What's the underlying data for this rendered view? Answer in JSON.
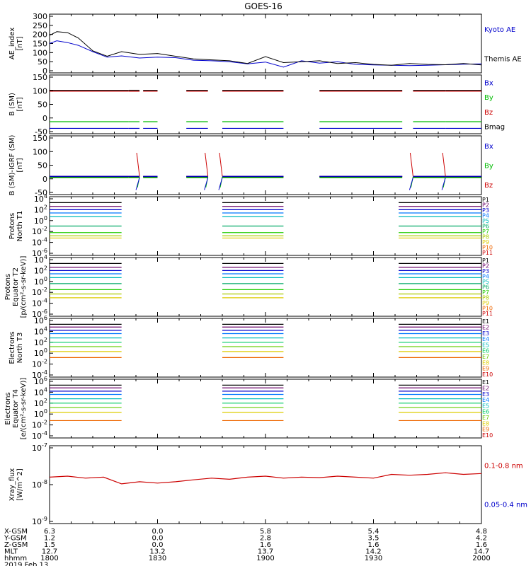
{
  "title": "GOES-16",
  "panels": [
    {
      "id": "ae",
      "ylabel": [
        "AE_index",
        "[nT]"
      ],
      "ticks": [
        "300",
        "250",
        "200",
        "150",
        "100",
        "50",
        "0"
      ],
      "legend": [
        {
          "text": "Kyoto AE",
          "color": "#0000cc"
        },
        {
          "text": "Themis AE",
          "color": "#000000"
        }
      ]
    },
    {
      "id": "bsm",
      "ylabel": [
        "B (SM)",
        "[nT]"
      ],
      "ticks": [
        "150",
        "100",
        "50",
        "0",
        "-50"
      ],
      "legend": [
        {
          "text": "Bx",
          "color": "#0000cc"
        },
        {
          "text": "By",
          "color": "#00bb00"
        },
        {
          "text": "Bz",
          "color": "#cc0000"
        },
        {
          "text": "Bmag",
          "color": "#000000"
        }
      ]
    },
    {
      "id": "bigrf",
      "ylabel": [
        "B (SM)-IGRF (SM)",
        "[nT]"
      ],
      "ticks": [
        "150",
        "100",
        "50",
        "0",
        "-50"
      ],
      "legend": [
        {
          "text": "Bx",
          "color": "#0000cc"
        },
        {
          "text": "By",
          "color": "#00bb00"
        },
        {
          "text": "Bz",
          "color": "#cc0000"
        }
      ]
    },
    {
      "id": "pn",
      "ylabel": [
        "Protons",
        "North T1"
      ],
      "ticks": [
        "10^4",
        "10^2",
        "10^0",
        "10^-2",
        "10^-4",
        "10^-6"
      ],
      "channels": [
        "P1",
        "P2",
        "P3",
        "P4",
        "P5",
        "P6",
        "P7",
        "P8",
        "P9",
        "P10",
        "P11"
      ]
    },
    {
      "id": "pe",
      "ylabel": [
        "Protons",
        "Equator T2",
        "[p/(cm²-s-sr-keV)]"
      ],
      "ticks": [
        "10^4",
        "10^2",
        "10^0",
        "10^-2",
        "10^-4",
        "10^-6"
      ],
      "channels": [
        "P1",
        "P2",
        "P3",
        "P4",
        "P5",
        "P6",
        "P7",
        "P8",
        "P9",
        "P10",
        "P11"
      ]
    },
    {
      "id": "en",
      "ylabel": [
        "Electrons",
        "North T3"
      ],
      "ticks": [
        "10^6",
        "10^4",
        "10^2",
        "10^0",
        "10^-2",
        "10^-4"
      ],
      "channels": [
        "E1",
        "E2",
        "E3",
        "E4",
        "E5",
        "E6",
        "E7",
        "E8",
        "E9",
        "E10"
      ]
    },
    {
      "id": "ee",
      "ylabel": [
        "Electrons",
        "Equator T4",
        "[e/(cm²-s-sr-keV)]"
      ],
      "ticks": [
        "10^6",
        "10^4",
        "10^2",
        "10^0",
        "10^-2",
        "10^-4"
      ],
      "channels": [
        "E1",
        "E2",
        "E3",
        "E4",
        "E5",
        "E6",
        "E7",
        "E8",
        "E9",
        "E10"
      ]
    },
    {
      "id": "xray",
      "ylabel": [
        "Xray_flux",
        "[W/m^2]"
      ],
      "ticks": [
        "10^-7",
        "10^-8",
        "10^-9"
      ],
      "legend": [
        {
          "text": "0.1-0.8 nm",
          "color": "#cc0000"
        },
        {
          "text": "0.05-0.4 nm",
          "color": "#0000cc"
        }
      ]
    }
  ],
  "ephemeris": {
    "rows": [
      {
        "label": "X-GSM",
        "values": [
          "6.3",
          "0.0",
          "5.8",
          "5.4",
          "4.8"
        ]
      },
      {
        "label": "Y-GSM",
        "values": [
          "1.2",
          "0.0",
          "2.8",
          "3.5",
          "4.2"
        ]
      },
      {
        "label": "Z-GSM",
        "values": [
          "1.5",
          "0.0",
          "1.6",
          "1.6",
          "1.6"
        ]
      },
      {
        "label": "MLT",
        "values": [
          "12.7",
          "13.2",
          "13.7",
          "14.2",
          "14.7"
        ]
      },
      {
        "label": "hhmm",
        "values": [
          "1800",
          "1830",
          "1900",
          "1930",
          "2000"
        ]
      }
    ],
    "date": "2019 Feb 13"
  },
  "channel_colors": {
    "P1": "#000000",
    "P2": "#6a006a",
    "P3": "#0000cc",
    "P4": "#0077ff",
    "P5": "#00bbbb",
    "P6": "#00aa66",
    "P7": "#22cc00",
    "P8": "#aacc00",
    "P9": "#ddcc00",
    "P10": "#ee6600",
    "P11": "#cc0000",
    "E1": "#000000",
    "E2": "#6a006a",
    "E3": "#0000cc",
    "E4": "#0077ff",
    "E5": "#00bbbb",
    "E6": "#00cc66",
    "E7": "#66cc00",
    "E8": "#ddcc00",
    "E9": "#ee6600",
    "E10": "#cc0000"
  },
  "chart_data": {
    "type": "line",
    "x_unit": "minutes after 1800 UT",
    "xlim": [
      0,
      120
    ],
    "x_tick_labels": [
      "1800",
      "1830",
      "1900",
      "1930",
      "2000"
    ],
    "panels": [
      {
        "name": "AE_index",
        "ylim": [
          0,
          300
        ],
        "series": [
          {
            "name": "Kyoto AE",
            "x": [
              0,
              2,
              5,
              8,
              12,
              16,
              20,
              25,
              30,
              35,
              40,
              45,
              50,
              55,
              60,
              65,
              70,
              75,
              80,
              85,
              90,
              95,
              100,
              105,
              110,
              115,
              120
            ],
            "y": [
              150,
              165,
              155,
              140,
              105,
              75,
              82,
              70,
              75,
              72,
              58,
              55,
              50,
              38,
              48,
              20,
              55,
              42,
              50,
              35,
              32,
              30,
              28,
              30,
              33,
              36,
              38
            ]
          },
          {
            "name": "Themis AE",
            "x": [
              0,
              2,
              5,
              8,
              12,
              16,
              20,
              25,
              30,
              35,
              40,
              45,
              50,
              55,
              60,
              65,
              70,
              75,
              80,
              85,
              90,
              95,
              100,
              105,
              110,
              115,
              120
            ],
            "y": [
              195,
              215,
              210,
              180,
              110,
              80,
              105,
              90,
              95,
              80,
              65,
              60,
              55,
              40,
              78,
              45,
              50,
              55,
              40,
              45,
              35,
              30,
              40,
              35,
              33,
              40,
              32
            ]
          }
        ]
      },
      {
        "name": "B (SM)",
        "ylim": [
          -60,
          160
        ],
        "series": [
          {
            "name": "Bz",
            "y_level": 103
          },
          {
            "name": "Bmag",
            "y_level": 107
          },
          {
            "name": "By",
            "y_level": -20
          },
          {
            "name": "Bx",
            "y_level": -47
          }
        ]
      },
      {
        "name": "B (SM)-IGRF (SM)",
        "ylim": [
          -60,
          160
        ],
        "series": [
          {
            "name": "Bz",
            "y_level": 5
          },
          {
            "name": "Bmag",
            "y_level": 3
          },
          {
            "name": "By",
            "y_level": 0
          },
          {
            "name": "Bx",
            "y_level": 5
          }
        ]
      },
      {
        "name": "Protons North T1",
        "levels_log10": {
          "P1": 3.3,
          "P2": 2.6,
          "P3": 2.0,
          "P4": 1.4,
          "P5": 0.7,
          "P6": -1.0,
          "P7": -2.2,
          "P8": -2.8,
          "P9": -3.2
        }
      },
      {
        "name": "Protons Equator T2",
        "levels_log10": {
          "P1": 3.3,
          "P2": 2.6,
          "P3": 2.0,
          "P4": 1.4,
          "P5": 0.7,
          "P6": -0.4,
          "P7": -1.5,
          "P8": -2.3,
          "P9": -3.0
        }
      },
      {
        "name": "Electrons North T3",
        "levels_log10": {
          "E1": 5.3,
          "E2": 4.8,
          "E3": 4.2,
          "E4": 3.6,
          "E5": 2.8,
          "E6": 2.0,
          "E7": 1.2,
          "E8": 0.3,
          "E9": -0.8
        }
      },
      {
        "name": "Electrons Equator T4",
        "levels_log10": {
          "E1": 5.3,
          "E2": 4.8,
          "E3": 4.2,
          "E4": 3.6,
          "E5": 2.8,
          "E6": 2.0,
          "E7": 1.2,
          "E8": 0.3,
          "E9": -1.2
        }
      },
      {
        "name": "Xray_flux",
        "scale": "log",
        "ylim": [
          1e-09,
          1e-07
        ],
        "series": [
          {
            "name": "0.1-0.8 nm",
            "x": [
              0,
              5,
              10,
              15,
              20,
              25,
              30,
              35,
              40,
              45,
              50,
              55,
              60,
              65,
              70,
              75,
              80,
              85,
              90,
              95,
              100,
              105,
              110,
              115,
              120
            ],
            "y": [
              1.6e-08,
              1.7e-08,
              1.5e-08,
              1.6e-08,
              1.05e-08,
              1.2e-08,
              1.1e-08,
              1.2e-08,
              1.35e-08,
              1.5e-08,
              1.4e-08,
              1.6e-08,
              1.7e-08,
              1.5e-08,
              1.6e-08,
              1.55e-08,
              1.7e-08,
              1.6e-08,
              1.5e-08,
              1.9e-08,
              1.8e-08,
              1.9e-08,
              2.1e-08,
              1.9e-08,
              2e-08
            ]
          }
        ]
      }
    ]
  }
}
